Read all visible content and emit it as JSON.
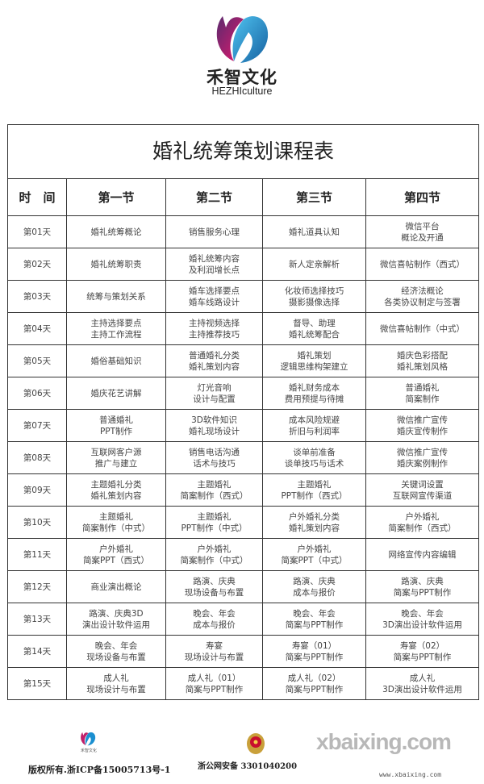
{
  "header": {
    "brand_cn": "禾智文化",
    "brand_en": "HEZHIculture",
    "logo_colors": [
      "#e6196e",
      "#1a9fd9",
      "#5a2a6e"
    ]
  },
  "table": {
    "title": "婚礼统筹策划课程表",
    "columns": [
      "时　间",
      "第一节",
      "第二节",
      "第三节",
      "第四节"
    ],
    "rows": [
      {
        "day": "第01天",
        "cells": [
          [
            "婚礼统筹概论"
          ],
          [
            "销售服务心理"
          ],
          [
            "婚礼道具认知"
          ],
          [
            "微信平台",
            "概论及开通"
          ]
        ]
      },
      {
        "day": "第02天",
        "cells": [
          [
            "婚礼统筹职责"
          ],
          [
            "婚礼统筹内容",
            "及利润增长点"
          ],
          [
            "新人定亲解析"
          ],
          [
            "微信喜帖制作（西式）"
          ]
        ]
      },
      {
        "day": "第03天",
        "cells": [
          [
            "统筹与策划关系"
          ],
          [
            "婚车选择要点",
            "婚车线路设计"
          ],
          [
            "化妆师选择技巧",
            "摄影摄像选择"
          ],
          [
            "经济法概论",
            "各类协议制定与签署"
          ]
        ]
      },
      {
        "day": "第04天",
        "cells": [
          [
            "主持选择要点",
            "主持工作流程"
          ],
          [
            "主持视频选择",
            "主持推荐技巧"
          ],
          [
            "督导、助理",
            "婚礼统筹配合"
          ],
          [
            "微信喜帖制作（中式）"
          ]
        ]
      },
      {
        "day": "第05天",
        "cells": [
          [
            "婚俗基础知识"
          ],
          [
            "普通婚礼分类",
            "婚礼策划内容"
          ],
          [
            "婚礼策划",
            "逻辑思维构架建立"
          ],
          [
            "婚庆色彩搭配",
            "婚礼策划风格"
          ]
        ]
      },
      {
        "day": "第06天",
        "cells": [
          [
            "婚庆花艺讲解"
          ],
          [
            "灯光音响",
            "设计与配置"
          ],
          [
            "婚礼财务成本",
            "费用预提与待摊"
          ],
          [
            "普通婚礼",
            "简案制作"
          ]
        ]
      },
      {
        "day": "第07天",
        "cells": [
          [
            "普通婚礼",
            "PPT制作"
          ],
          [
            "3D软件知识",
            "婚礼现场设计"
          ],
          [
            "成本风险规避",
            "折旧与利润率"
          ],
          [
            "微信推广宣传",
            "婚庆宣传制作"
          ]
        ]
      },
      {
        "day": "第08天",
        "cells": [
          [
            "互联网客户源",
            "推广与建立"
          ],
          [
            "销售电话沟通",
            "话术与技巧"
          ],
          [
            "谈单前准备",
            "谈单技巧与话术"
          ],
          [
            "微信推广宣传",
            "婚庆案例制作"
          ]
        ]
      },
      {
        "day": "第09天",
        "cells": [
          [
            "主题婚礼分类",
            "婚礼策划内容"
          ],
          [
            "主题婚礼",
            "简案制作（西式）"
          ],
          [
            "主题婚礼",
            "PPT制作（西式）"
          ],
          [
            "关键词设置",
            "互联网宣传渠道"
          ]
        ]
      },
      {
        "day": "第10天",
        "cells": [
          [
            "主题婚礼",
            "简案制作（中式）"
          ],
          [
            "主题婚礼",
            "PPT制作（中式）"
          ],
          [
            "户外婚礼分类",
            "婚礼策划内容"
          ],
          [
            "户外婚礼",
            "简案制作（西式）"
          ]
        ]
      },
      {
        "day": "第11天",
        "cells": [
          [
            "户外婚礼",
            "简案PPT（西式）"
          ],
          [
            "户外婚礼",
            "简案制作（中式）"
          ],
          [
            "户外婚礼",
            "简案PPT（中式）"
          ],
          [
            "网络宣传内容编辑"
          ]
        ]
      },
      {
        "day": "第12天",
        "cells": [
          [
            "商业演出概论"
          ],
          [
            "路演、庆典",
            "现场设备与布置"
          ],
          [
            "路演、庆典",
            "成本与报价"
          ],
          [
            "路演、庆典",
            "简案与PPT制作"
          ]
        ]
      },
      {
        "day": "第13天",
        "cells": [
          [
            "路演、庆典3D",
            "演出设计软件运用"
          ],
          [
            "晚会、年会",
            "成本与报价"
          ],
          [
            "晚会、年会",
            "简案与PPT制作"
          ],
          [
            "晚会、年会",
            "3D演出设计软件运用"
          ]
        ]
      },
      {
        "day": "第14天",
        "cells": [
          [
            "晚会、年会",
            "现场设备与布置"
          ],
          [
            "寿宴",
            "现场设计与布置"
          ],
          [
            "寿宴（01）",
            "简案与PPT制作"
          ],
          [
            "寿宴（02）",
            "简案与PPT制作"
          ]
        ]
      },
      {
        "day": "第15天",
        "cells": [
          [
            "成人礼",
            "现场设计与布置"
          ],
          [
            "成人礼（01）",
            "简案与PPT制作"
          ],
          [
            "成人礼（02）",
            "简案与PPT制作"
          ],
          [
            "成人礼",
            "3D演出设计软件运用"
          ]
        ]
      }
    ]
  },
  "footer": {
    "logo_text": "禾智文化",
    "copyright": "版权所有.浙ICP备15005713号-1",
    "beian": "浙公网安备 3301040200",
    "watermark": "xbaixing.com",
    "watermark_url": "www.xbaixing.com"
  }
}
